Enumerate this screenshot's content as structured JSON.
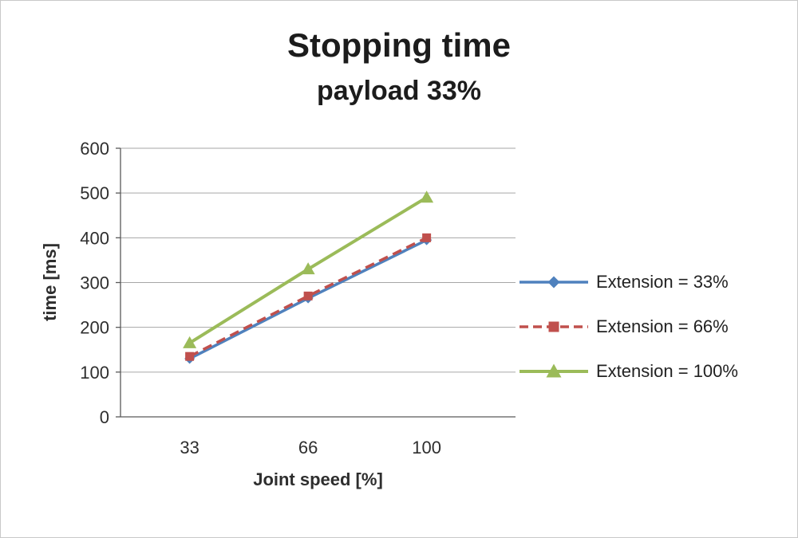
{
  "chart_data": {
    "type": "line",
    "title": "Stopping time",
    "subtitle": "payload 33%",
    "xlabel": "Joint speed [%]",
    "ylabel": "time [ms]",
    "categories": [
      "33",
      "66",
      "100"
    ],
    "series": [
      {
        "name": "Extension = 33%",
        "values": [
          130,
          265,
          395
        ],
        "color": "#4F81BD",
        "marker": "diamond",
        "dash": "solid"
      },
      {
        "name": "Extension = 66%",
        "values": [
          135,
          270,
          400
        ],
        "color": "#C0504D",
        "marker": "square",
        "dash": "dashed"
      },
      {
        "name": "Extension = 100%",
        "values": [
          165,
          330,
          490
        ],
        "color": "#9BBB59",
        "marker": "triangle",
        "dash": "solid"
      }
    ],
    "ylim": [
      0,
      600
    ],
    "ytick_step": 100,
    "grid": true,
    "legend_position": "right",
    "axis_color": "#595959",
    "grid_color": "#a6a6a6",
    "tick_label_color": "#2e2e2e"
  }
}
